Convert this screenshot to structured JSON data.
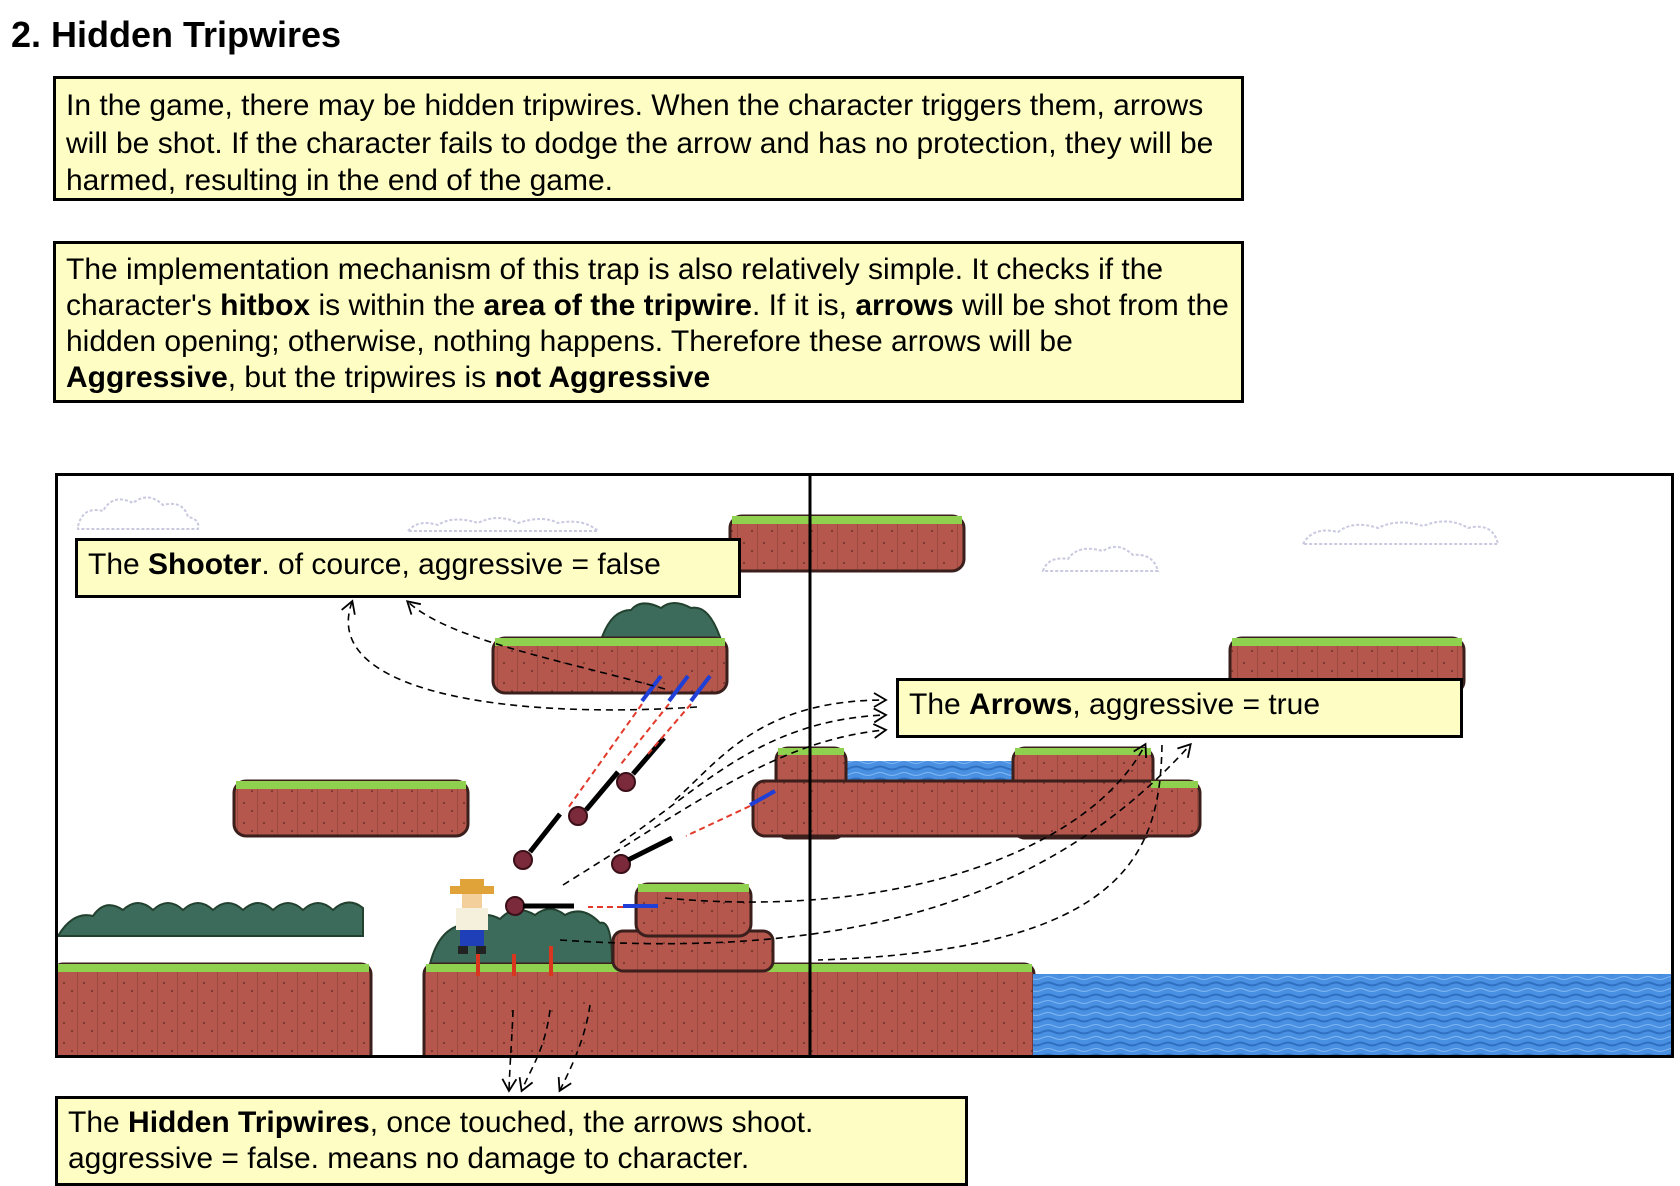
{
  "heading": "2. Hidden Tripwires",
  "intro_note": {
    "text": "In the game, there may be hidden tripwires. When the character triggers them, arrows will be shot. If the character fails to dodge the arrow and has no protection, they will be harmed, resulting in the end of the game."
  },
  "mechanism_note": {
    "part1": "The implementation mechanism of this trap is also relatively simple. It checks if the character's ",
    "hitbox": "hitbox",
    "part2": " is within the ",
    "area": "area of the tripwire",
    "part3": ". If it is, ",
    "arrows": "arrows",
    "part4": " will be shot from the hidden opening; otherwise, nothing happens. Therefore these arrows will be ",
    "aggressive": "Aggressive",
    "part5": ", but the tripwires is ",
    "not_aggressive": "not Aggressive"
  },
  "labels": {
    "shooter": {
      "prefix": "The ",
      "bold": "Shooter",
      "suffix": ". of cource, aggressive = false"
    },
    "arrows": {
      "prefix": "The ",
      "bold": "Arrows",
      "suffix": ", aggressive = true"
    },
    "tripwires": {
      "prefix": "The ",
      "bold": "Hidden Tripwires",
      "suffix": ", once touched, the arrows shoot.",
      "line2": "aggressive = false. means no damage to character."
    }
  },
  "colors": {
    "note_bg": "#fdfdc4",
    "dirt": "#b5574c",
    "dirt_dark": "#7e3b36",
    "grass": "#8fd14f",
    "bush": "#3d6b5b",
    "water": "#4a90e2",
    "arrow_head": "#1f3fd6",
    "arrow_path": "#e23a2a",
    "tripwire": "#d9361f"
  }
}
